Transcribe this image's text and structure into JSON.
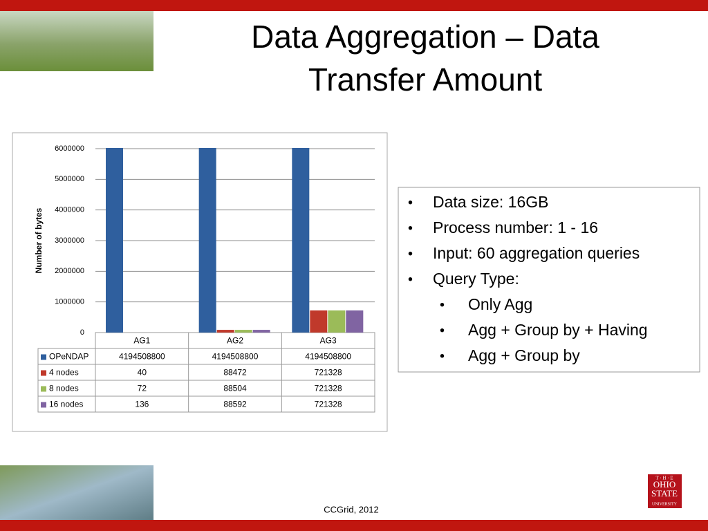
{
  "header": {
    "title_lines": [
      "Data Aggregation – Data",
      "Transfer Amount"
    ]
  },
  "chart_data": {
    "type": "bar",
    "y_axis_label": "Number of bytes",
    "categories": [
      "AG1",
      "AG2",
      "AG3"
    ],
    "series": [
      {
        "name": "OPeNDAP",
        "color": "#2f5f9e",
        "values": [
          4194508800,
          4194508800,
          4194508800
        ]
      },
      {
        "name": "4 nodes",
        "color": "#c0392b",
        "values": [
          40,
          88472,
          721328
        ]
      },
      {
        "name": "8 nodes",
        "color": "#9bbb59",
        "values": [
          72,
          88504,
          721328
        ]
      },
      {
        "name": "16 nodes",
        "color": "#8064a2",
        "values": [
          136,
          88592,
          721328
        ]
      }
    ],
    "ylim": [
      0,
      6000000
    ],
    "yticks": [
      0,
      1000000,
      2000000,
      3000000,
      4000000,
      5000000,
      6000000
    ],
    "grid": true,
    "data_table": true
  },
  "bullets": [
    {
      "level": 1,
      "text": "Data size: 16GB"
    },
    {
      "level": 1,
      "text": "Process number: 1 - 16"
    },
    {
      "level": 1,
      "text": "Input: 60 aggregation queries"
    },
    {
      "level": 1,
      "text": "Query Type:"
    },
    {
      "level": 2,
      "text": "Only Agg"
    },
    {
      "level": 2,
      "text": "Agg + Group by + Having"
    },
    {
      "level": 2,
      "text": "Agg + Group by"
    }
  ],
  "bullet_symbol": "•",
  "footer": "CCGrid, 2012",
  "logo": [
    "T · H · E",
    "OHIO",
    "STATE",
    "UNIVERSITY"
  ]
}
